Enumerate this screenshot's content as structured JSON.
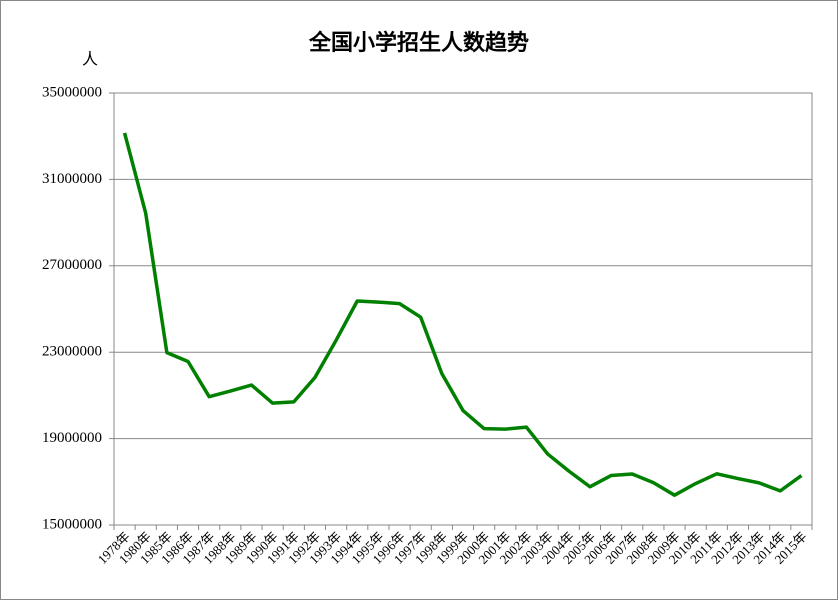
{
  "chart_data": {
    "type": "line",
    "title": "全国小学招生人数趋势",
    "y_label": "人",
    "categories": [
      "1978年",
      "1980年",
      "1985年",
      "1986年",
      "1987年",
      "1988年",
      "1989年",
      "1990年",
      "1991年",
      "1992年",
      "1993年",
      "1994年",
      "1995年",
      "1996年",
      "1997年",
      "1998年",
      "1999年",
      "2000年",
      "2001年",
      "2002年",
      "2003年",
      "2004年",
      "2005年",
      "2006年",
      "2007年",
      "2008年",
      "2009年",
      "2010年",
      "2011年",
      "2012年",
      "2013年",
      "2014年",
      "2015年"
    ],
    "series": [
      {
        "name": "小学招生人数",
        "color": "#008000",
        "values": [
          33150000,
          29430000,
          22980000,
          22570000,
          20940000,
          21200000,
          21480000,
          20640000,
          20700000,
          21830000,
          23550000,
          25370000,
          25320000,
          25250000,
          24620000,
          22010000,
          20300000,
          19460000,
          19440000,
          19530000,
          18290000,
          17500000,
          16770000,
          17290000,
          17360000,
          16960000,
          16380000,
          16920000,
          17370000,
          17150000,
          16950000,
          16580000,
          17290000
        ]
      }
    ],
    "ylim": [
      15000000,
      35000000
    ],
    "yticks": [
      15000000,
      19000000,
      23000000,
      27000000,
      31000000,
      35000000
    ],
    "grid": true
  }
}
